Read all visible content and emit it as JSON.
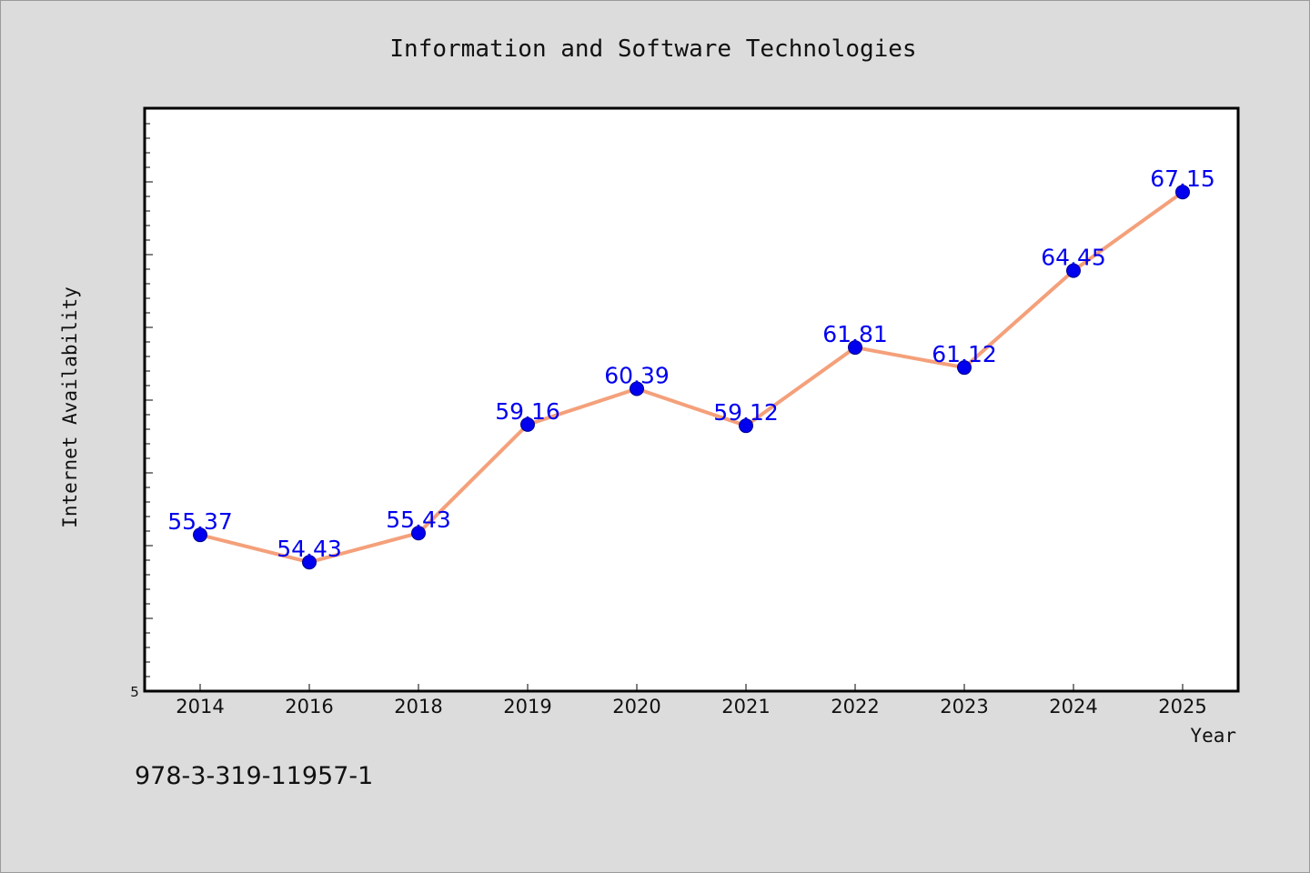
{
  "chart_data": {
    "type": "line",
    "title": "Information and Software Technologies",
    "xlabel": "Year",
    "ylabel": "Internet Availability",
    "categories": [
      "2014",
      "2016",
      "2018",
      "2019",
      "2020",
      "2021",
      "2022",
      "2023",
      "2024",
      "2025"
    ],
    "values": [
      55.37,
      54.43,
      55.43,
      59.16,
      60.39,
      59.12,
      61.81,
      61.12,
      64.45,
      67.15
    ],
    "data_labels": [
      "55.37",
      "54.43",
      "55.43",
      "59.16",
      "60.39",
      "59.12",
      "61.81",
      "61.12",
      "64.45",
      "67.15"
    ],
    "ylim": [
      50,
      70
    ],
    "y_tick_labels": [
      "5"
    ],
    "grid": false,
    "legend": "none",
    "line_color": "#f4a07a",
    "marker_color": "#0000ee",
    "label_color": "#0000ee"
  },
  "footnote": "978-3-319-11957-1"
}
